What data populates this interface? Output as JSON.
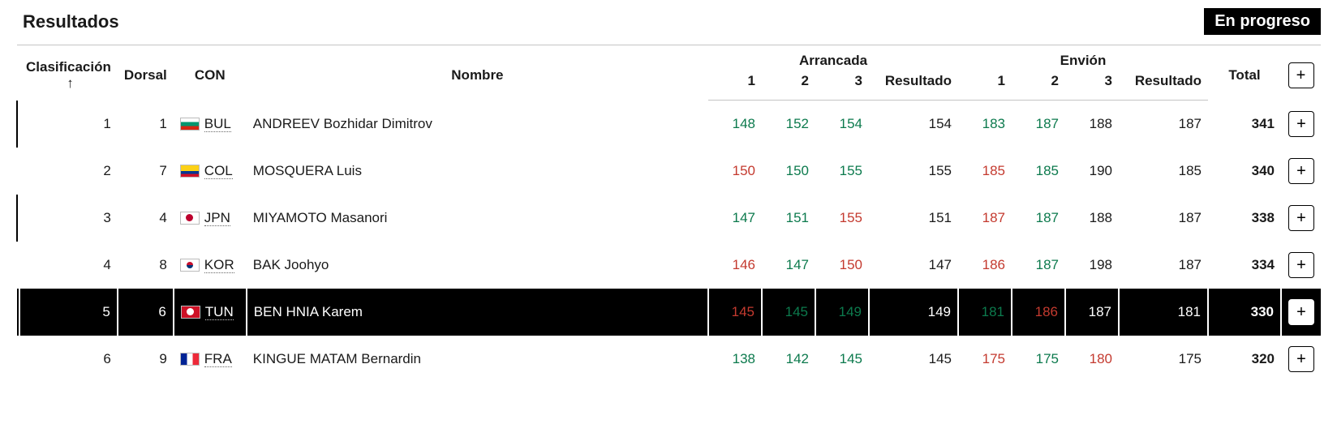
{
  "title": "Resultados",
  "status": "En progreso",
  "colors": {
    "good": "#0c7a4d",
    "fail": "#c43a2f",
    "pending": "#1a1a1a",
    "highlight_bg": "#000000",
    "highlight_fg": "#ffffff",
    "border": "#c4c4c4"
  },
  "headers": {
    "rank": "Clasificación",
    "sort_icon": "↑",
    "bib": "Dorsal",
    "con": "CON",
    "name": "Nombre",
    "snatch_group": "Arrancada",
    "cj_group": "Envión",
    "a1": "1",
    "a2": "2",
    "a3": "3",
    "result": "Resultado",
    "total": "Total",
    "expand": "+"
  },
  "rows": [
    {
      "rank": 1,
      "bib": 1,
      "con": "BUL",
      "name": "ANDREEV Bozhidar Dimitrov",
      "snatch": [
        {
          "v": 148,
          "s": "good"
        },
        {
          "v": 152,
          "s": "good"
        },
        {
          "v": 154,
          "s": "good"
        }
      ],
      "snatch_result": 154,
      "cj": [
        {
          "v": 183,
          "s": "good"
        },
        {
          "v": 187,
          "s": "good"
        },
        {
          "v": 188,
          "s": "pending"
        }
      ],
      "cj_result": 187,
      "total": 341,
      "highlight": false,
      "marker": true
    },
    {
      "rank": 2,
      "bib": 7,
      "con": "COL",
      "name": "MOSQUERA Luis",
      "snatch": [
        {
          "v": 150,
          "s": "fail"
        },
        {
          "v": 150,
          "s": "good"
        },
        {
          "v": 155,
          "s": "good"
        }
      ],
      "snatch_result": 155,
      "cj": [
        {
          "v": 185,
          "s": "fail"
        },
        {
          "v": 185,
          "s": "good"
        },
        {
          "v": 190,
          "s": "pending"
        }
      ],
      "cj_result": 185,
      "total": 340,
      "highlight": false,
      "marker": false
    },
    {
      "rank": 3,
      "bib": 4,
      "con": "JPN",
      "name": "MIYAMOTO Masanori",
      "snatch": [
        {
          "v": 147,
          "s": "good"
        },
        {
          "v": 151,
          "s": "good"
        },
        {
          "v": 155,
          "s": "fail"
        }
      ],
      "snatch_result": 151,
      "cj": [
        {
          "v": 187,
          "s": "fail"
        },
        {
          "v": 187,
          "s": "good"
        },
        {
          "v": 188,
          "s": "pending"
        }
      ],
      "cj_result": 187,
      "total": 338,
      "highlight": false,
      "marker": true
    },
    {
      "rank": 4,
      "bib": 8,
      "con": "KOR",
      "name": "BAK Joohyo",
      "snatch": [
        {
          "v": 146,
          "s": "fail"
        },
        {
          "v": 147,
          "s": "good"
        },
        {
          "v": 150,
          "s": "fail"
        }
      ],
      "snatch_result": 147,
      "cj": [
        {
          "v": 186,
          "s": "fail"
        },
        {
          "v": 187,
          "s": "good"
        },
        {
          "v": 198,
          "s": "pending"
        }
      ],
      "cj_result": 187,
      "total": 334,
      "highlight": false,
      "marker": false
    },
    {
      "rank": 5,
      "bib": 6,
      "con": "TUN",
      "name": "BEN HNIA Karem",
      "snatch": [
        {
          "v": 145,
          "s": "fail"
        },
        {
          "v": 145,
          "s": "good"
        },
        {
          "v": 149,
          "s": "good"
        }
      ],
      "snatch_result": 149,
      "cj": [
        {
          "v": 181,
          "s": "good"
        },
        {
          "v": 186,
          "s": "fail"
        },
        {
          "v": 187,
          "s": "pending"
        }
      ],
      "cj_result": 181,
      "total": 330,
      "highlight": true,
      "marker": false
    },
    {
      "rank": 6,
      "bib": 9,
      "con": "FRA",
      "name": "KINGUE MATAM Bernardin",
      "snatch": [
        {
          "v": 138,
          "s": "good"
        },
        {
          "v": 142,
          "s": "good"
        },
        {
          "v": 145,
          "s": "good"
        }
      ],
      "snatch_result": 145,
      "cj": [
        {
          "v": 175,
          "s": "fail"
        },
        {
          "v": 175,
          "s": "good"
        },
        {
          "v": 180,
          "s": "fail"
        }
      ],
      "cj_result": 175,
      "total": 320,
      "highlight": false,
      "marker": false
    }
  ]
}
